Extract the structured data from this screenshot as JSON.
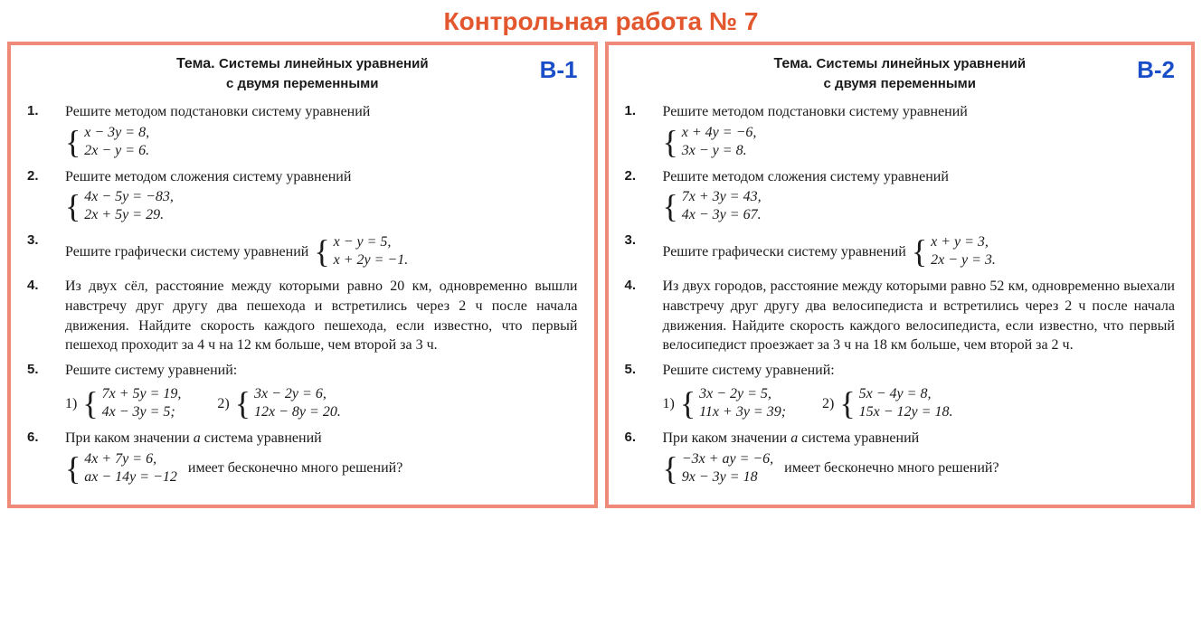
{
  "colors": {
    "title": "#e2572e",
    "border": "#f08a78",
    "variant_label": "#1a4ec9",
    "text": "#1a1a1a"
  },
  "page_title": "Контрольная работа № 7",
  "variants": [
    {
      "label": "В-1",
      "theme_prefix": "Тема.",
      "theme_line1": "Системы линейных уравнений",
      "theme_line2": "с двумя переменными",
      "tasks": {
        "t1": {
          "text": "Решите методом подстановки систему уравнений",
          "sys": [
            "x − 3y = 8,",
            "2x − y = 6."
          ]
        },
        "t2": {
          "text": "Решите методом сложения систему уравнений",
          "sys": [
            "4x − 5y = −83,",
            "2x + 5y = 29."
          ]
        },
        "t3": {
          "text": "Решите графически систему уравнений",
          "sys": [
            "x − y = 5,",
            "x + 2y = −1."
          ]
        },
        "t4": {
          "text": "Из двух сёл, расстояние между которыми равно 20 км, одновременно вышли навстречу друг другу два пешехода и встретились через 2 ч после начала движения. Найдите скорость каждого пешехода, если известно, что первый пешеход проходит за 4 ч на 12 км больше, чем второй за 3 ч."
        },
        "t5": {
          "text": "Решите систему уравнений:",
          "sub1_num": "1)",
          "sub1": [
            "7x + 5y = 19,",
            "4x − 3y = 5;"
          ],
          "sub2_num": "2)",
          "sub2": [
            "3x − 2y = 6,",
            "12x − 8y = 20."
          ]
        },
        "t6": {
          "text_before": "При каком значении ",
          "text_var": "a",
          "text_after": " система уравнений",
          "sys": [
            "4x + 7y = 6,",
            "ax − 14y = −12"
          ],
          "tail": "имеет бесконечно много решений?"
        }
      }
    },
    {
      "label": "В-2",
      "theme_prefix": "Тема.",
      "theme_line1": "Системы линейных уравнений",
      "theme_line2": "с двумя переменными",
      "tasks": {
        "t1": {
          "text": "Решите методом подстановки систему уравнений",
          "sys": [
            "x + 4y = −6,",
            "3x − y = 8."
          ]
        },
        "t2": {
          "text": "Решите методом сложения систему уравнений",
          "sys": [
            "7x + 3y = 43,",
            "4x − 3y = 67."
          ]
        },
        "t3": {
          "text": "Решите графически систему уравнений",
          "sys": [
            "x + y = 3,",
            "2x − y = 3."
          ]
        },
        "t4": {
          "text": "Из двух городов, расстояние между которыми равно 52 км, одновременно выехали навстречу друг другу два велосипедиста и встретились через 2 ч после начала движения. Найдите скорость каждого велосипедиста, если известно, что первый велосипедист проезжает за 3 ч на 18 км больше, чем второй за 2 ч."
        },
        "t5": {
          "text": "Решите систему уравнений:",
          "sub1_num": "1)",
          "sub1": [
            "3x − 2y = 5,",
            "11x + 3y = 39;"
          ],
          "sub2_num": "2)",
          "sub2": [
            "5x − 4y = 8,",
            "15x − 12y = 18."
          ]
        },
        "t6": {
          "text_before": "При каком значении ",
          "text_var": "a",
          "text_after": " система уравнений",
          "sys": [
            "−3x + ay = −6,",
            "9x − 3y = 18"
          ],
          "tail": "имеет бесконечно много решений?"
        }
      }
    }
  ]
}
